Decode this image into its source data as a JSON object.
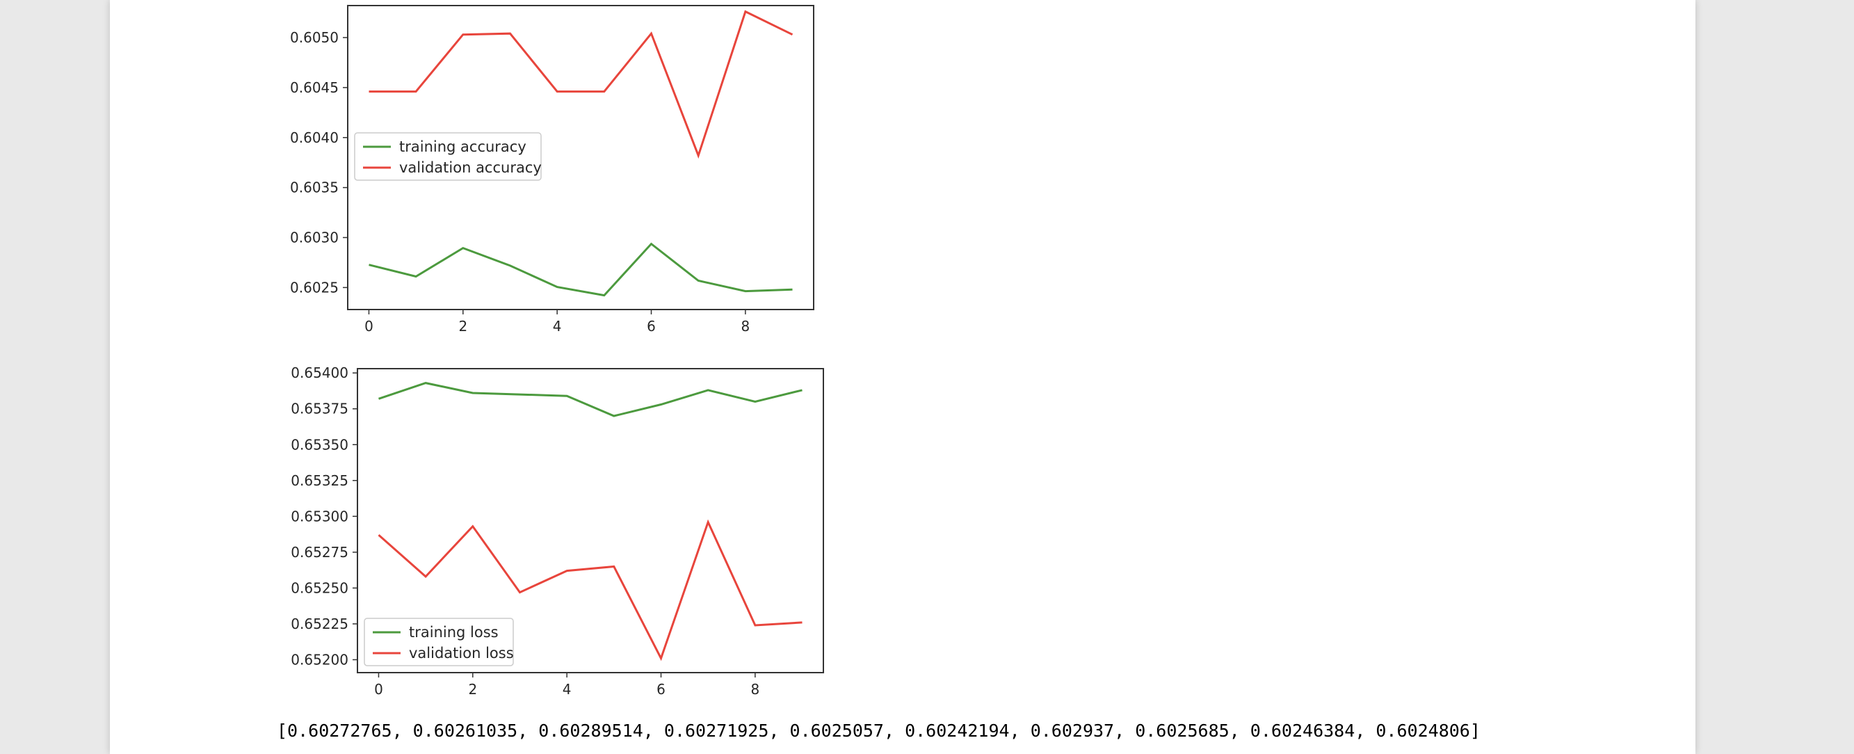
{
  "chart_data": [
    {
      "type": "line",
      "x": [
        0,
        1,
        2,
        3,
        4,
        5,
        6,
        7,
        8,
        9
      ],
      "xticks": [
        "0",
        "2",
        "4",
        "6",
        "8"
      ],
      "xlim": [
        -0.45,
        9.45
      ],
      "ylim": [
        0.60228,
        0.60532
      ],
      "yticks": [
        "0.6025",
        "0.6030",
        "0.6035",
        "0.6040",
        "0.6045",
        "0.6050"
      ],
      "title": "",
      "xlabel": "",
      "ylabel": "",
      "grid": false,
      "legend": "center-left",
      "series": [
        {
          "name": "training accuracy",
          "color": "#4c9a3e",
          "values": [
            0.60272765,
            0.60261035,
            0.60289514,
            0.60271925,
            0.6025057,
            0.60242194,
            0.602937,
            0.6025685,
            0.60246384,
            0.6024806
          ]
        },
        {
          "name": "validation accuracy",
          "color": "#e8453c",
          "values": [
            0.60446,
            0.60446,
            0.60503,
            0.60504,
            0.60446,
            0.60446,
            0.60504,
            0.60382,
            0.60526,
            0.60503
          ]
        }
      ]
    },
    {
      "type": "line",
      "x": [
        0,
        1,
        2,
        3,
        4,
        5,
        6,
        7,
        8,
        9
      ],
      "xticks": [
        "0",
        "2",
        "4",
        "6",
        "8"
      ],
      "xlim": [
        -0.45,
        9.45
      ],
      "ylim": [
        0.65191,
        0.65403
      ],
      "yticks": [
        "0.65200",
        "0.65225",
        "0.65250",
        "0.65275",
        "0.65300",
        "0.65325",
        "0.65350",
        "0.65375",
        "0.65400"
      ],
      "title": "",
      "xlabel": "",
      "ylabel": "",
      "grid": false,
      "legend": "lower-left",
      "series": [
        {
          "name": "training loss",
          "color": "#4c9a3e",
          "values": [
            0.65382,
            0.65393,
            0.65386,
            0.65385,
            0.65384,
            0.6537,
            0.65378,
            0.65388,
            0.6538,
            0.65388
          ]
        },
        {
          "name": "validation loss",
          "color": "#e8453c",
          "values": [
            0.65287,
            0.65258,
            0.65293,
            0.65247,
            0.65262,
            0.65265,
            0.65201,
            0.65296,
            0.65224,
            0.65226
          ]
        }
      ]
    }
  ],
  "output_text": "[0.60272765, 0.60261035, 0.60289514, 0.60271925, 0.6025057, 0.60242194, 0.602937, 0.6025685, 0.60246384, 0.6024806]"
}
